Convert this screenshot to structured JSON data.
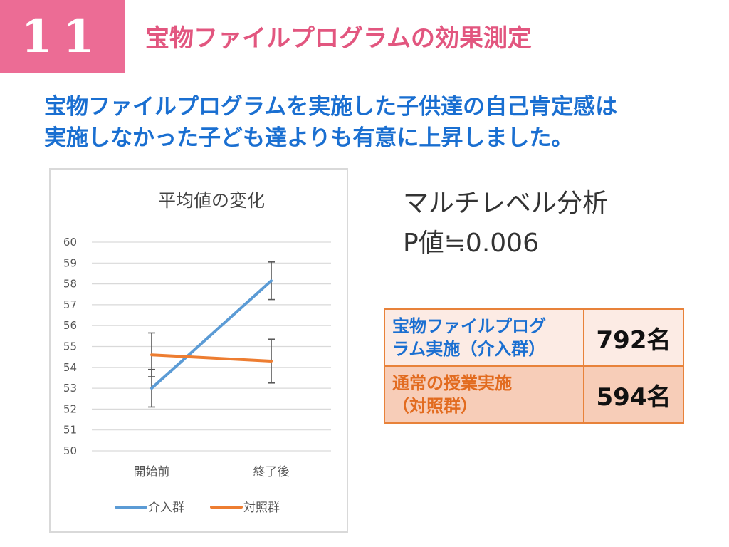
{
  "slide": {
    "number": "11",
    "title": "宝物ファイルプログラムの効果測定",
    "headline_lines": [
      "宝物ファイルプログラムを実施した子供達の自己肯定感は",
      "実施しなかった子ども達よりも有意に上昇しました。"
    ]
  },
  "stats": {
    "method": "マルチレベル分析",
    "p_value": "P値≒0.006"
  },
  "groups": [
    {
      "label_lines": [
        "宝物ファイルプログ",
        "ラム実施（介入群）"
      ],
      "count": "792名"
    },
    {
      "label_lines": [
        "通常の授業実施",
        "（対照群）"
      ],
      "count": "594名"
    }
  ],
  "colors": {
    "number_box": "#ec6c95",
    "title": "#e2567f",
    "headline": "#1a6fd1",
    "table_border": "#e8823a"
  },
  "chart_data": {
    "type": "line",
    "title": "平均値の変化",
    "categories": [
      "開始前",
      "終了後"
    ],
    "ylim": [
      50,
      60
    ],
    "yticks": [
      50,
      51,
      52,
      53,
      54,
      55,
      56,
      57,
      58,
      59,
      60
    ],
    "grid": true,
    "legend_position": "bottom",
    "series": [
      {
        "name": "介入群",
        "color": "#5b9bd5",
        "values": [
          53.0,
          58.15
        ],
        "error": [
          0.9,
          0.9
        ]
      },
      {
        "name": "対照群",
        "color": "#ed7d31",
        "values": [
          54.6,
          54.3
        ],
        "error": [
          1.05,
          1.05
        ]
      }
    ]
  }
}
